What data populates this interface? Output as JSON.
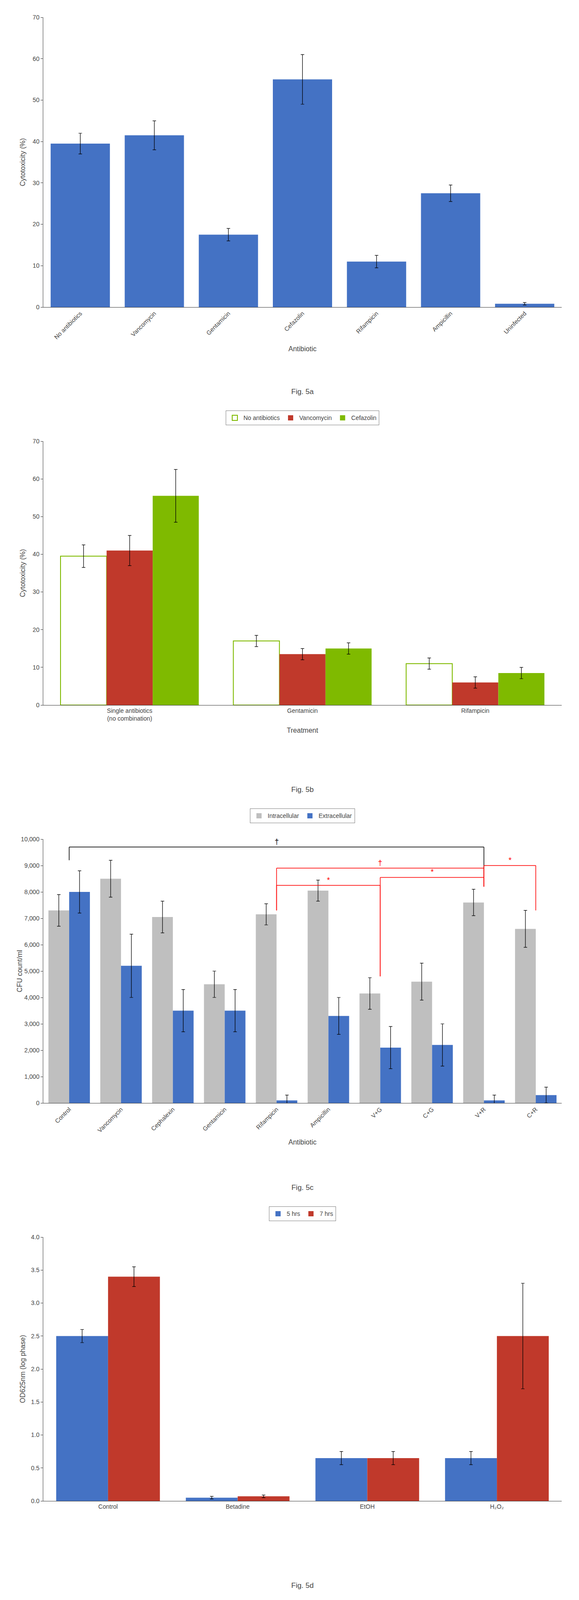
{
  "chart_data": [
    {
      "type": "bar",
      "title": "Fig. 5a",
      "xlabel": "Antibiotic",
      "ylabel": "Cytotoxicity (%)",
      "categories": [
        "No antibiotics",
        "Vancomycin",
        "Gentamicin",
        "Cefazolin",
        "Rifampicin",
        "Ampicillin",
        "Uninfected"
      ],
      "values": [
        39.5,
        41.5,
        17.5,
        55.0,
        11.0,
        27.5,
        0.8
      ],
      "errors": [
        2.5,
        3.5,
        1.5,
        6.0,
        1.5,
        2.0,
        0.3
      ],
      "color": "#4472C4",
      "ylim": [
        0,
        70
      ],
      "yticks": [
        0,
        10,
        20,
        30,
        40,
        50,
        60,
        70
      ],
      "grid": false
    },
    {
      "type": "bar",
      "title": "Fig. 5b",
      "xlabel": "Treatment",
      "ylabel": "Cytotoxicity (%)",
      "categories": [
        "Single antibiotics\n(no combination)",
        "Gentamicin",
        "Rifampicin"
      ],
      "series": [
        {
          "name": "No antibiotics",
          "color": "#7fba00",
          "marker": "hollow",
          "values": [
            39.5,
            17.0,
            11.0
          ],
          "errors": [
            3.0,
            1.5,
            1.5
          ]
        },
        {
          "name": "Vancomycin",
          "color": "#C0392B",
          "values": [
            41.0,
            13.5,
            6.0
          ],
          "errors": [
            4.0,
            1.5,
            1.5
          ]
        },
        {
          "name": "Cefazolin",
          "color": "#7fba00",
          "values": [
            55.5,
            15.0,
            8.5
          ],
          "errors": [
            7.0,
            1.5,
            1.5
          ]
        }
      ],
      "ylim": [
        0,
        70
      ],
      "yticks": [
        0,
        10,
        20,
        30,
        40,
        50,
        60,
        70
      ],
      "grid": false,
      "legend": "top"
    },
    {
      "type": "bar",
      "title": "Fig. 5c",
      "xlabel": "Antibiotic",
      "ylabel": "CFU count/ml",
      "categories": [
        "Control",
        "Vancomycin",
        "Cephalexin",
        "Gentamicin",
        "Rifampicin",
        "Ampicillin",
        "V+G",
        "C+G",
        "V+R",
        "C+R"
      ],
      "series": [
        {
          "name": "Intracellular",
          "color": "#BFBFBF",
          "values": [
            7300,
            8500,
            7050,
            4500,
            7150,
            8050,
            4150,
            4600,
            7600,
            6600
          ],
          "errors": [
            600,
            700,
            600,
            500,
            400,
            400,
            600,
            700,
            500,
            700
          ]
        },
        {
          "name": "Extracellular",
          "color": "#4472C4",
          "values": [
            8000,
            5200,
            3500,
            3500,
            100,
            3300,
            2100,
            2200,
            100,
            300
          ],
          "errors": [
            800,
            1200,
            800,
            800,
            200,
            700,
            800,
            800,
            200,
            300
          ]
        }
      ],
      "ylim": [
        0,
        10000
      ],
      "yticks": [
        0,
        {
          "value": 1000,
          "label": "1,000"
        },
        {
          "value": 2000,
          "label": "2,000"
        },
        {
          "value": 3000,
          "label": "3,000"
        },
        {
          "value": 4000,
          "label": "4,000"
        },
        {
          "value": 5000,
          "label": "5,000"
        },
        {
          "value": 6000,
          "label": "6,000"
        },
        {
          "value": 7000,
          "label": "7,000"
        },
        {
          "value": 8000,
          "label": "8,000"
        },
        {
          "value": 9000,
          "label": "9,000"
        },
        {
          "value": 10000,
          "label": "10,000"
        }
      ],
      "annotations": [
        {
          "x1": "Control",
          "x2": "V+R",
          "y": 9700,
          "y1": 9200,
          "y2": 8200,
          "label": "†",
          "color": "black"
        },
        {
          "x1": "Rifampicin",
          "x2": "V+R",
          "y": 8900,
          "y1": 7300,
          "y2": 8200,
          "label": "†",
          "color": "red"
        },
        {
          "x1": "Rifampicin",
          "x2": "V+G",
          "y": 8250,
          "y1": 7300,
          "y2": 4800,
          "label": "*",
          "color": "red"
        },
        {
          "x1": "V+G",
          "x2": "V+R",
          "y": 8550,
          "y1": 4800,
          "y2": 8200,
          "label": "*",
          "color": "red"
        },
        {
          "x1": "V+R",
          "x2": "C+R",
          "y": 9000,
          "y1": 8200,
          "y2": 7300,
          "label": "*",
          "color": "red"
        }
      ],
      "grid": false,
      "legend": "top"
    },
    {
      "type": "bar",
      "title": "Fig. 5d",
      "ylabel": "OD625nm (log phase)",
      "categories": [
        "Control",
        "Betadine",
        "EtOH",
        "H₂O₂"
      ],
      "series": [
        {
          "name": "5 hrs",
          "color": "#4472C4",
          "values": [
            2.5,
            0.05,
            0.65,
            0.65
          ],
          "errors": [
            0.1,
            0.02,
            0.1,
            0.1
          ]
        },
        {
          "name": "7 hrs",
          "color": "#C0392B",
          "values": [
            3.4,
            0.07,
            0.65,
            2.5
          ],
          "errors": [
            0.15,
            0.02,
            0.1,
            0.8
          ]
        }
      ],
      "ylim": [
        0,
        4.0
      ],
      "yticks": [
        {
          "value": 0,
          "label": "0.0"
        },
        0.5,
        {
          "value": 1,
          "label": "1.0"
        },
        1.5,
        {
          "value": 2,
          "label": "2.0"
        },
        2.5,
        {
          "value": 3,
          "label": "3.0"
        },
        3.5,
        {
          "value": 4,
          "label": "4.0"
        }
      ],
      "grid": false,
      "legend": "top"
    }
  ]
}
